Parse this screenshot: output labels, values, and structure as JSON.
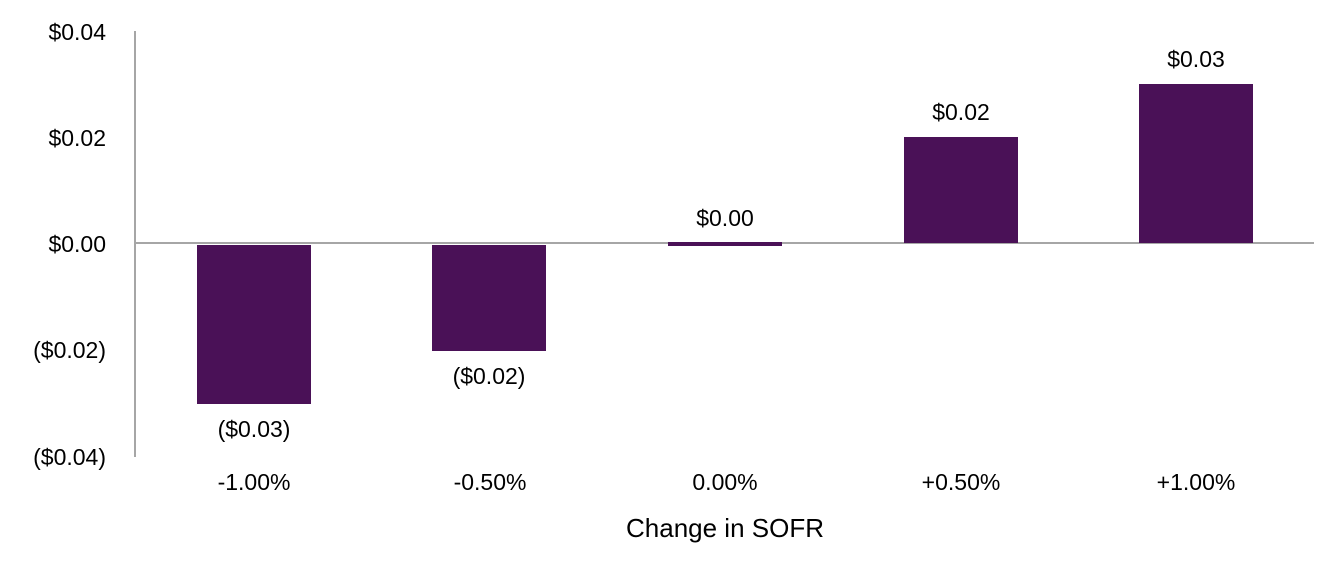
{
  "chart_data": {
    "type": "bar",
    "title": "",
    "xlabel": "Change in SOFR",
    "ylabel": "",
    "categories": [
      "-1.00%",
      "-0.50%",
      "0.00%",
      "+0.50%",
      "+1.00%"
    ],
    "values": [
      -0.03,
      -0.02,
      0.0,
      0.02,
      0.03
    ],
    "data_labels": [
      "($0.03)",
      "($0.02)",
      "$0.00",
      "$0.02",
      "$0.03"
    ],
    "ylim": [
      -0.04,
      0.04
    ],
    "yticks": [
      {
        "value": 0.04,
        "label": "$0.04"
      },
      {
        "value": 0.02,
        "label": "$0.02"
      },
      {
        "value": 0.0,
        "label": "$0.00"
      },
      {
        "value": -0.02,
        "label": "($0.02)"
      },
      {
        "value": -0.04,
        "label": "($0.04)"
      }
    ],
    "grid": false,
    "legend": false,
    "colors": {
      "bar": "#4A1157",
      "axis": "#A6A6A6",
      "text": "#000000",
      "background": "#FFFFFF"
    }
  }
}
